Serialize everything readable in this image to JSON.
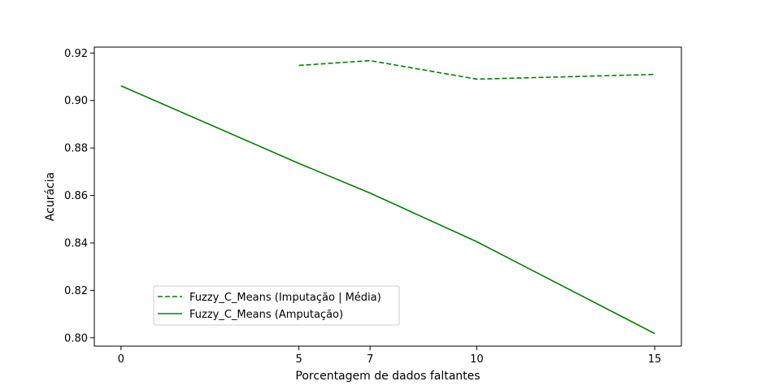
{
  "chart_data": {
    "type": "line",
    "xlabel": "Porcentagem de dados faltantes",
    "ylabel": "Acurácia",
    "xticks": [
      0,
      5,
      7,
      10,
      15
    ],
    "yticks": [
      "0.80",
      "0.82",
      "0.84",
      "0.86",
      "0.88",
      "0.90",
      "0.92"
    ],
    "xlim": [
      -0.75,
      15.75
    ],
    "ylim": [
      0.7965,
      0.9225
    ],
    "grid": false,
    "legend_position": "lower-left",
    "series": [
      {
        "name": "Fuzzy_C_Means (Imputação | Média)",
        "style": "dashed",
        "color": "#008000",
        "x": [
          5,
          7,
          10,
          15
        ],
        "y": [
          0.9148,
          0.9168,
          0.909,
          0.911
        ]
      },
      {
        "name": "Fuzzy_C_Means (Amputação)",
        "style": "solid",
        "color": "#008000",
        "x": [
          0,
          5,
          7,
          10,
          15
        ],
        "y": [
          0.9062,
          0.8735,
          0.861,
          0.8405,
          0.8018
        ]
      }
    ]
  }
}
